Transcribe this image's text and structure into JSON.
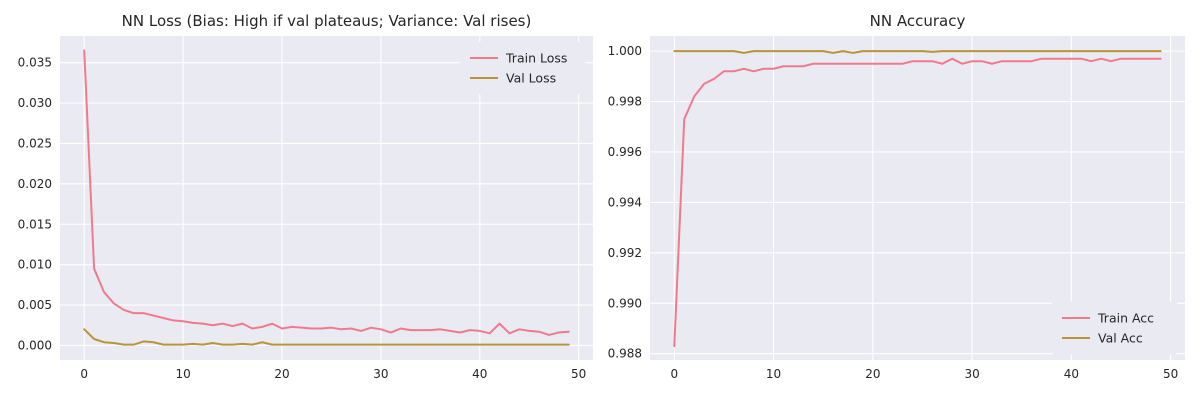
{
  "chart_data": [
    {
      "type": "line",
      "title": "NN Loss (Bias: High if val plateaus; Variance: Val rises)",
      "xlabel": "",
      "ylabel": "",
      "xlim": [
        -2.45,
        51.45
      ],
      "ylim": [
        -0.0018,
        0.0383
      ],
      "xticks": [
        0,
        10,
        20,
        30,
        40,
        50
      ],
      "xtick_labels": [
        "0",
        "10",
        "20",
        "30",
        "40",
        "50"
      ],
      "yticks": [
        0.0,
        0.005,
        0.01,
        0.015,
        0.02,
        0.025,
        0.03,
        0.035
      ],
      "ytick_labels": [
        "0.000",
        "0.005",
        "0.010",
        "0.015",
        "0.020",
        "0.025",
        "0.030",
        "0.035"
      ],
      "grid": true,
      "legend_position": "upper-right",
      "x": [
        0,
        1,
        2,
        3,
        4,
        5,
        6,
        7,
        8,
        9,
        10,
        11,
        12,
        13,
        14,
        15,
        16,
        17,
        18,
        19,
        20,
        21,
        22,
        23,
        24,
        25,
        26,
        27,
        28,
        29,
        30,
        31,
        32,
        33,
        34,
        35,
        36,
        37,
        38,
        39,
        40,
        41,
        42,
        43,
        44,
        45,
        46,
        47,
        48,
        49
      ],
      "series": [
        {
          "name": "Train Loss",
          "color": "#f07a8c",
          "values": [
            0.0365,
            0.0095,
            0.0066,
            0.0052,
            0.0044,
            0.004,
            0.004,
            0.0037,
            0.0034,
            0.0031,
            0.003,
            0.0028,
            0.0027,
            0.0025,
            0.0027,
            0.0024,
            0.0027,
            0.0021,
            0.0023,
            0.0027,
            0.0021,
            0.0023,
            0.0022,
            0.0021,
            0.0021,
            0.0022,
            0.002,
            0.0021,
            0.0018,
            0.0022,
            0.002,
            0.0016,
            0.0021,
            0.0019,
            0.0019,
            0.0019,
            0.002,
            0.0018,
            0.0016,
            0.0019,
            0.0018,
            0.0015,
            0.0027,
            0.0015,
            0.002,
            0.0018,
            0.0017,
            0.0013,
            0.0016,
            0.0017
          ]
        },
        {
          "name": "Val Loss",
          "color": "#b8943a",
          "values": [
            0.002,
            0.0008,
            0.0004,
            0.0003,
            0.0001,
            0.0001,
            0.0005,
            0.0004,
            0.0001,
            0.0001,
            0.0001,
            0.0002,
            0.0001,
            0.0003,
            0.0001,
            0.0001,
            0.0002,
            0.0001,
            0.0004,
            0.0001,
            0.0001,
            0.0001,
            0.0001,
            0.0001,
            0.0001,
            0.0001,
            0.0001,
            0.0001,
            0.0001,
            0.0001,
            0.0001,
            0.0001,
            0.0001,
            0.0001,
            0.0001,
            0.0001,
            0.0001,
            0.0001,
            0.0001,
            0.0001,
            0.0001,
            0.0001,
            0.0001,
            0.0001,
            0.0001,
            0.0001,
            0.0001,
            0.0001,
            0.0001,
            0.0001
          ]
        }
      ]
    },
    {
      "type": "line",
      "title": "NN Accuracy",
      "xlabel": "",
      "ylabel": "",
      "xlim": [
        -2.45,
        51.45
      ],
      "ylim": [
        0.98775,
        1.0006
      ],
      "xticks": [
        0,
        10,
        20,
        30,
        40,
        50
      ],
      "xtick_labels": [
        "0",
        "10",
        "20",
        "30",
        "40",
        "50"
      ],
      "yticks": [
        0.988,
        0.99,
        0.992,
        0.994,
        0.996,
        0.998,
        1.0
      ],
      "ytick_labels": [
        "0.988",
        "0.990",
        "0.992",
        "0.994",
        "0.996",
        "0.998",
        "1.000"
      ],
      "grid": true,
      "legend_position": "lower-right",
      "x": [
        0,
        1,
        2,
        3,
        4,
        5,
        6,
        7,
        8,
        9,
        10,
        11,
        12,
        13,
        14,
        15,
        16,
        17,
        18,
        19,
        20,
        21,
        22,
        23,
        24,
        25,
        26,
        27,
        28,
        29,
        30,
        31,
        32,
        33,
        34,
        35,
        36,
        37,
        38,
        39,
        40,
        41,
        42,
        43,
        44,
        45,
        46,
        47,
        48,
        49
      ],
      "series": [
        {
          "name": "Train Acc",
          "color": "#f07a8c",
          "values": [
            0.9883,
            0.9973,
            0.9982,
            0.9987,
            0.9989,
            0.9992,
            0.9992,
            0.9993,
            0.9992,
            0.9993,
            0.9993,
            0.9994,
            0.9994,
            0.9994,
            0.9995,
            0.9995,
            0.9995,
            0.9995,
            0.9995,
            0.9995,
            0.9995,
            0.9995,
            0.9995,
            0.9995,
            0.9996,
            0.9996,
            0.9996,
            0.9995,
            0.9997,
            0.9995,
            0.9996,
            0.9996,
            0.9995,
            0.9996,
            0.9996,
            0.9996,
            0.9996,
            0.9997,
            0.9997,
            0.9997,
            0.9997,
            0.9997,
            0.9996,
            0.9997,
            0.9996,
            0.9997,
            0.9997,
            0.9997,
            0.9997,
            0.9997
          ]
        },
        {
          "name": "Val Acc",
          "color": "#b8943a",
          "values": [
            1.0,
            1.0,
            1.0,
            1.0,
            1.0,
            1.0,
            1.0,
            0.99993,
            1.0,
            1.0,
            1.0,
            1.0,
            1.0,
            1.0,
            1.0,
            1.0,
            0.99993,
            1.0,
            0.99993,
            1.0,
            1.0,
            1.0,
            1.0,
            1.0,
            1.0,
            1.0,
            0.99997,
            1.0,
            1.0,
            1.0,
            1.0,
            1.0,
            1.0,
            1.0,
            1.0,
            1.0,
            1.0,
            1.0,
            1.0,
            1.0,
            1.0,
            1.0,
            1.0,
            1.0,
            1.0,
            1.0,
            1.0,
            1.0,
            1.0,
            1.0
          ]
        }
      ]
    }
  ]
}
